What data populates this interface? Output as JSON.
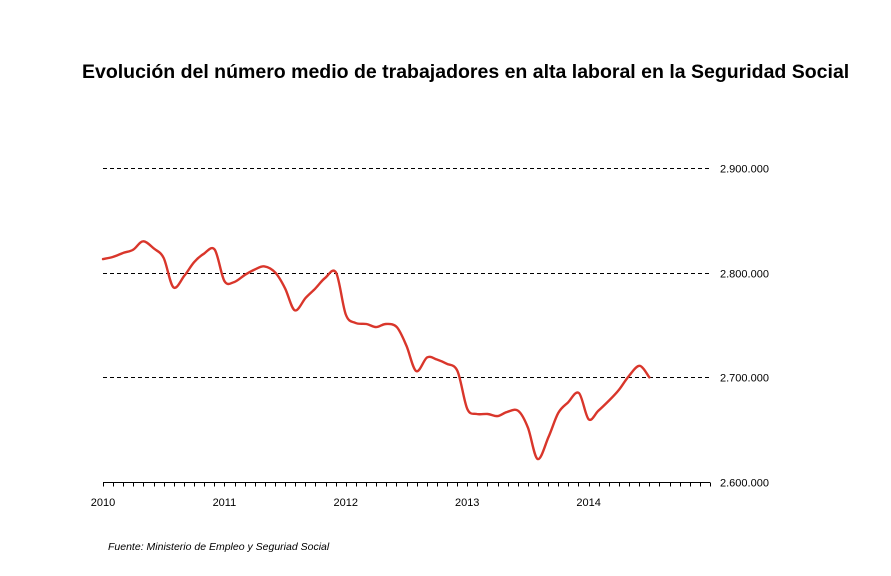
{
  "chart_data": {
    "type": "line",
    "title": "Evolución del número medio de trabajadores en alta laboral en la Seguridad Social",
    "source": "Fuente: Ministerio de Empleo y Seguriad Social",
    "xlabel": "",
    "ylabel": "",
    "x_tick_labels": [
      "2010",
      "2011",
      "2012",
      "2013",
      "2014"
    ],
    "y_tick_labels": [
      "2.900.000",
      "2.800.000",
      "2.700.000",
      "2.600.000"
    ],
    "y_ticks": [
      2900000,
      2800000,
      2700000,
      2600000
    ],
    "ylim": [
      2600000,
      2900000
    ],
    "xlim": [
      2010,
      2015
    ],
    "grid": "horizontal dashed",
    "y_axis_position": "right",
    "line_color": "#d9362b",
    "series": [
      {
        "x": [
          2010.0,
          2010.08,
          2010.17,
          2010.25,
          2010.33,
          2010.42,
          2010.5,
          2010.58,
          2010.67,
          2010.75,
          2010.83,
          2010.92,
          2011.0,
          2011.08,
          2011.17,
          2011.25,
          2011.33,
          2011.42,
          2011.5,
          2011.58,
          2011.67,
          2011.75,
          2011.83,
          2011.92,
          2012.0,
          2012.08,
          2012.17,
          2012.25,
          2012.33,
          2012.42,
          2012.5,
          2012.58,
          2012.67,
          2012.75,
          2012.83,
          2012.92,
          2013.0,
          2013.08,
          2013.17,
          2013.25,
          2013.33,
          2013.42,
          2013.5,
          2013.58,
          2013.67,
          2013.75,
          2013.83,
          2013.92,
          2014.0,
          2014.08,
          2014.17,
          2014.25,
          2014.33,
          2014.42,
          2014.5
        ],
        "values": [
          2813000,
          2815000,
          2819000,
          2822000,
          2830000,
          2823000,
          2814000,
          2786000,
          2797000,
          2810000,
          2818000,
          2822000,
          2792000,
          2791000,
          2798000,
          2803000,
          2806000,
          2800000,
          2785000,
          2764000,
          2776000,
          2785000,
          2795000,
          2800000,
          2760000,
          2752000,
          2751000,
          2748000,
          2751000,
          2748000,
          2730000,
          2706000,
          2719000,
          2717000,
          2713000,
          2706000,
          2670000,
          2665000,
          2665000,
          2663000,
          2667000,
          2668000,
          2652000,
          2622000,
          2643000,
          2666000,
          2676000,
          2685000,
          2660000,
          2668000,
          2678000,
          2688000,
          2701000,
          2711000,
          2700000
        ]
      }
    ]
  }
}
